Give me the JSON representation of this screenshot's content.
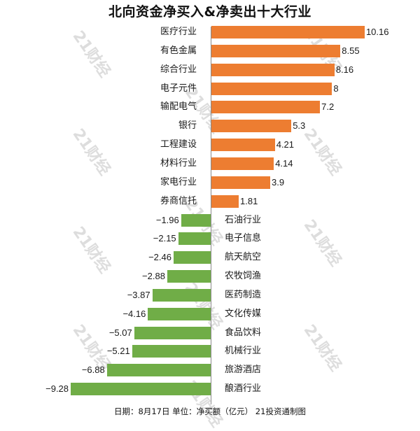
{
  "watermark": "21财经",
  "chart_data": {
    "type": "bar",
    "orientation": "horizontal",
    "title": "北向资金净买入&净卖出十大行业",
    "xlabel": "",
    "ylabel": "",
    "unit": "净买额（亿元）",
    "grid": false,
    "legend": null,
    "colors": {
      "positive": "#ed7d31",
      "negative": "#70ad47"
    },
    "categories": [
      "医疗行业",
      "有色金属",
      "综合行业",
      "电子元件",
      "输配电气",
      "银行",
      "工程建设",
      "材料行业",
      "家电行业",
      "券商信托",
      "石油行业",
      "电子信息",
      "航天航空",
      "农牧饲渔",
      "医药制造",
      "文化传媒",
      "食品饮料",
      "机械行业",
      "旅游酒店",
      "酿酒行业"
    ],
    "values": [
      10.16,
      8.55,
      8.16,
      8,
      7.2,
      5.3,
      4.21,
      4.14,
      3.9,
      1.81,
      -1.96,
      -2.15,
      -2.46,
      -2.88,
      -3.87,
      -4.16,
      -5.07,
      -5.21,
      -6.88,
      -9.28
    ],
    "value_labels": [
      "10.16",
      "8.55",
      "8.16",
      "8",
      "7.2",
      "5.3",
      "4.21",
      "4.14",
      "3.9",
      "1.81",
      "−1.96",
      "−2.15",
      "−2.46",
      "−2.88",
      "−3.87",
      "−4.16",
      "−5.07",
      "−5.21",
      "−6.88",
      "−9.28"
    ],
    "xlim": [
      -9.28,
      10.16
    ]
  },
  "footer": "日期：8月17日 单位：净买额（亿元） 21投资通制图"
}
